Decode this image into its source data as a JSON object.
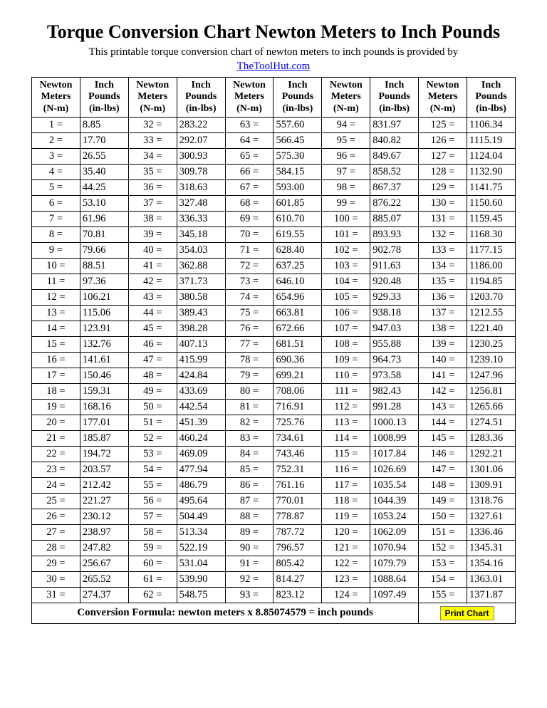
{
  "title": "Torque Conversion Chart Newton Meters to Inch Pounds",
  "subtitle": "This printable torque conversion chart of newton meters to inch pounds is provided by",
  "link_text": "TheToolHut.com",
  "header_nm_l1": "Newton",
  "header_nm_l2": "Meters",
  "header_nm_l3": "(N-m)",
  "header_il_l1": "Inch",
  "header_il_l2": "Pounds",
  "header_il_l3": "(in-lbs)",
  "formula_text": "Conversion Formula: newton meters x 8.85074579 = inch pounds",
  "print_label": "Print Chart",
  "conversion_factor": 8.85074579,
  "rows_per_column": 31,
  "column_pairs": 5,
  "start_value": 1,
  "end_value": 155,
  "colors": {
    "link": "#0000ee",
    "border": "#000000",
    "background": "#ffffff",
    "print_bg": "#ffff00",
    "print_border": "#888888"
  },
  "fonts": {
    "title_size": 26,
    "body_size": 15,
    "cell_size": 14.5,
    "print_family": "Arial"
  }
}
